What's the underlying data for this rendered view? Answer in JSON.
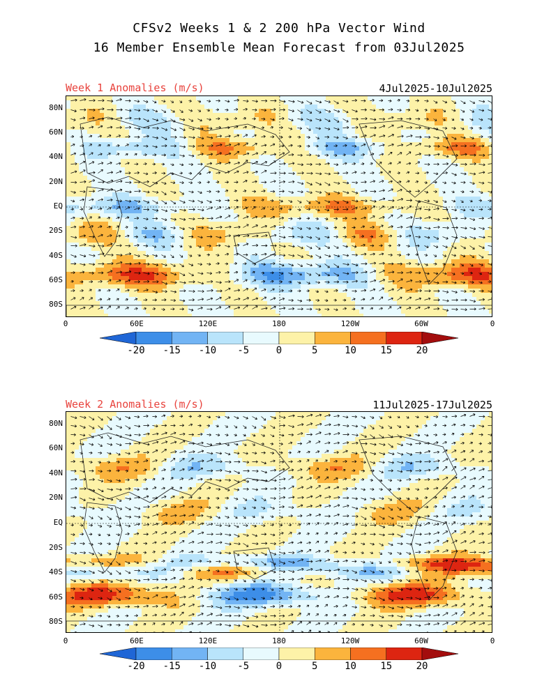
{
  "header": {
    "title_line1": "CFSv2 Weeks 1 & 2 200 hPa Vector Wind",
    "title_line2": "16 Member Ensemble Mean Forecast from 03Jul2025"
  },
  "panels": [
    {
      "left_label": "Week 1 Anomalies (m/s)",
      "right_label": "4Jul2025-10Jul2025"
    },
    {
      "left_label": "Week 2 Anomalies (m/s)",
      "right_label": "11Jul2025-17Jul2025"
    }
  ],
  "axes": {
    "lat_labels": [
      "80N",
      "60N",
      "40N",
      "20N",
      "EQ",
      "20S",
      "40S",
      "60S",
      "80S"
    ],
    "lon_labels": [
      "0",
      "60E",
      "120E",
      "180",
      "120W",
      "60W",
      "0"
    ]
  },
  "colorbar": {
    "labels": [
      "-20",
      "-15",
      "-10",
      "-5",
      "0",
      "5",
      "10",
      "15",
      "20"
    ],
    "colors": [
      "#1f66d6",
      "#3d8ee8",
      "#72b4f4",
      "#b9e4fb",
      "#e8fafe",
      "#fdf2a8",
      "#fbb43d",
      "#f57020",
      "#dd2511",
      "#a30d0d"
    ]
  }
}
